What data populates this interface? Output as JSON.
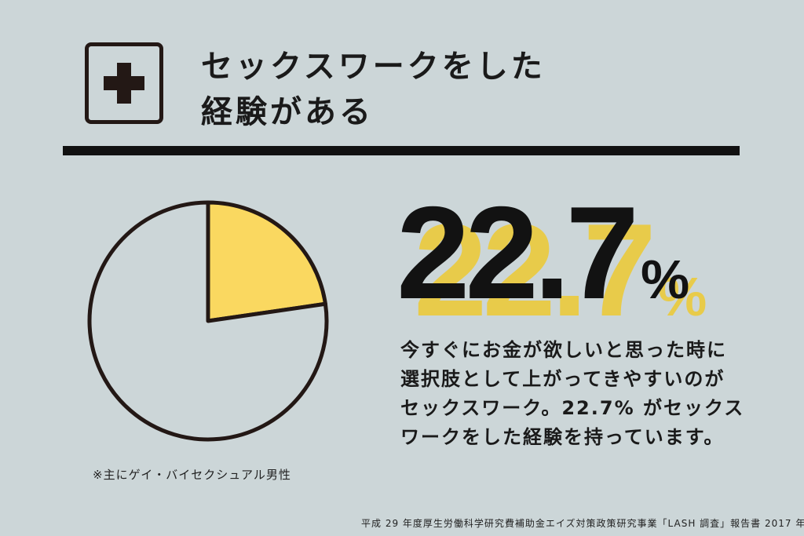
{
  "header": {
    "title_line1": "セックスワークをした",
    "title_line2": "経験がある",
    "icon": "plus-icon"
  },
  "highlight": {
    "value": "22.7",
    "unit": "%"
  },
  "description": {
    "line1": "今すぐにお金が欲しいと思った時に",
    "line2": "選択肢として上がってきやすいのが",
    "line3": "セックスワーク。22.7% がセックス",
    "line4": "ワークをした経験を持っています。"
  },
  "footnote": "※主にゲイ・バイセクシュアル男性",
  "source": "平成 29 年度厚生労働科学研究費補助金エイズ対策政策研究事業「LASH 調査」報告書 2017 年",
  "colors": {
    "background": "#ccd6d8",
    "highlight": "#fad860",
    "ink": "#231815",
    "shadow": "#e8cb4a"
  },
  "chart_data": {
    "type": "pie",
    "slices": [
      {
        "value": 22.7,
        "color": "#fad860"
      },
      {
        "value": 77.3,
        "color": "#ccd6d8"
      }
    ]
  }
}
